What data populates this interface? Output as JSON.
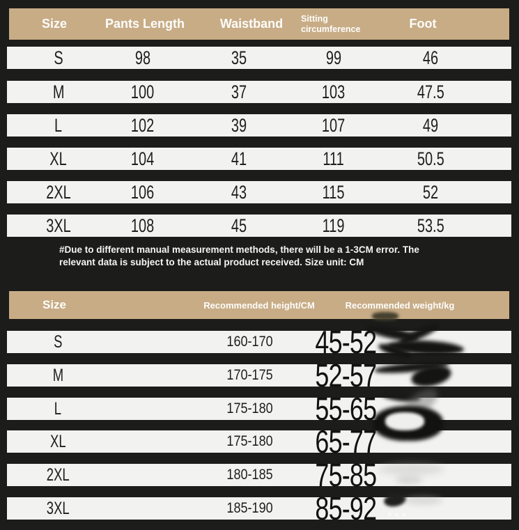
{
  "colors": {
    "background": "#1c1c1a",
    "header_bg": "#c8ac86",
    "row_bg": "#f2f2f0",
    "header_text": "#fdfdfb",
    "cell_text": "#1e1e1e",
    "note_text": "#f5f5f3"
  },
  "size_table": {
    "headers": [
      "Size",
      "Pants Length",
      "Waistband",
      "Sitting circumference",
      "Foot"
    ],
    "rows": [
      {
        "cells": [
          "S",
          "98",
          "35",
          "99",
          "46"
        ]
      },
      {
        "cells": [
          "M",
          "100",
          "37",
          "103",
          "47.5"
        ]
      },
      {
        "cells": [
          "L",
          "102",
          "39",
          "107",
          "49"
        ]
      },
      {
        "cells": [
          "XL",
          "104",
          "41",
          "111",
          "50.5"
        ]
      },
      {
        "cells": [
          "2XL",
          "106",
          "43",
          "115",
          "52"
        ]
      },
      {
        "cells": [
          "3XL",
          "108",
          "45",
          "119",
          "53.5"
        ]
      }
    ]
  },
  "note": {
    "line1": "#Due to different manual measurement methods, there will be a 1-3CM error. The",
    "line2": "relevant data is subject to the actual product received. Size unit: CM"
  },
  "fit_table": {
    "headers": [
      "Size",
      "Recommended height/CM",
      "Recommended weight/kg"
    ],
    "rows": [
      {
        "size": "S",
        "height": "160-170",
        "weight": "45-52"
      },
      {
        "size": "M",
        "height": "170-175",
        "weight": "52-57"
      },
      {
        "size": "L",
        "height": "175-180",
        "weight": "55-65"
      },
      {
        "size": "XL",
        "height": "175-180",
        "weight": "65-77"
      },
      {
        "size": "2XL",
        "height": "180-185",
        "weight": "75-85"
      },
      {
        "size": "3XL",
        "height": "185-190",
        "weight": "85-92"
      }
    ]
  }
}
